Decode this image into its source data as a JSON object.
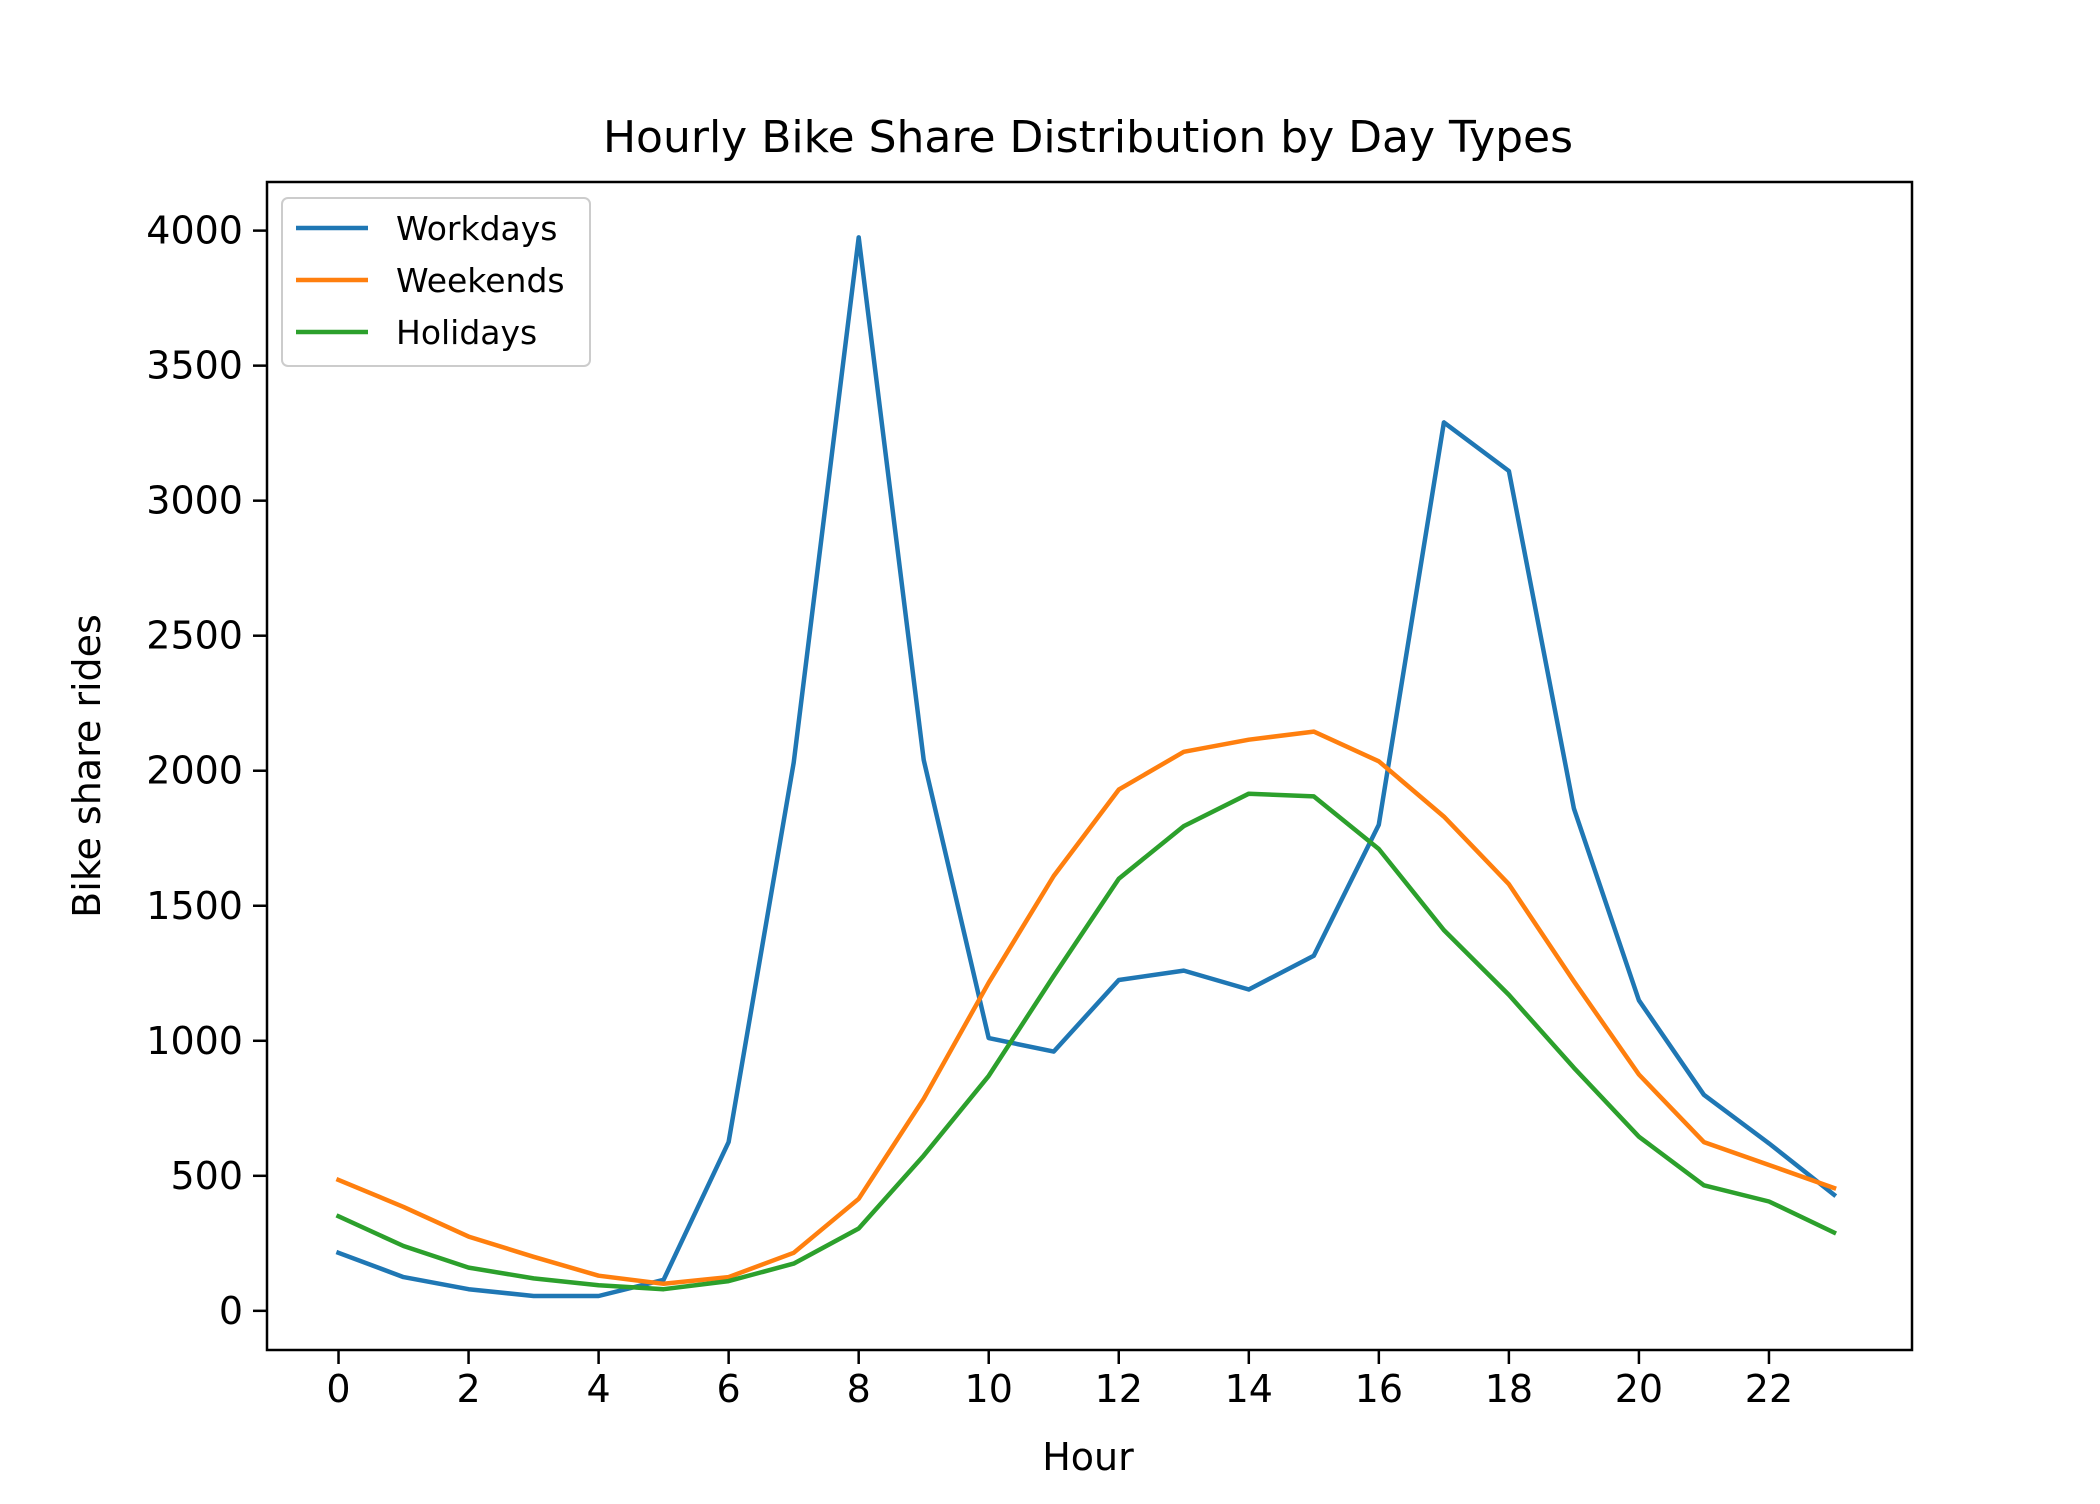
{
  "chart_data": {
    "type": "line",
    "title": "Hourly Bike Share Distribution by Day Types",
    "xlabel": "Hour",
    "ylabel": "Bike share rides",
    "xlim": [
      -1.1,
      24.2
    ],
    "ylim": [
      -145,
      4180
    ],
    "x_ticks": [
      0,
      2,
      4,
      6,
      8,
      10,
      12,
      14,
      16,
      18,
      20,
      22
    ],
    "y_ticks": [
      0,
      500,
      1000,
      1500,
      2000,
      2500,
      3000,
      3500,
      4000
    ],
    "grid": false,
    "legend_position": "top-left",
    "x": [
      0,
      1,
      2,
      3,
      4,
      5,
      6,
      7,
      8,
      9,
      10,
      11,
      12,
      13,
      14,
      15,
      16,
      17,
      18,
      19,
      20,
      21,
      22,
      23
    ],
    "series": [
      {
        "name": "Workdays",
        "color": "#1f77b4",
        "values": [
          215,
          125,
          80,
          55,
          55,
          115,
          625,
          2030,
          3975,
          2040,
          1010,
          960,
          1225,
          1260,
          1190,
          1315,
          1800,
          3290,
          3110,
          1860,
          1150,
          800,
          620,
          430
        ]
      },
      {
        "name": "Weekends",
        "color": "#ff7f0e",
        "values": [
          485,
          385,
          275,
          200,
          130,
          100,
          125,
          215,
          415,
          785,
          1215,
          1610,
          1930,
          2070,
          2115,
          2145,
          2035,
          1830,
          1580,
          1220,
          875,
          625,
          540,
          455
        ]
      },
      {
        "name": "Holidays",
        "color": "#2ca02c",
        "values": [
          350,
          240,
          160,
          120,
          95,
          80,
          110,
          175,
          305,
          575,
          870,
          1240,
          1600,
          1795,
          1915,
          1905,
          1710,
          1410,
          1170,
          900,
          645,
          465,
          405,
          290
        ]
      }
    ]
  }
}
